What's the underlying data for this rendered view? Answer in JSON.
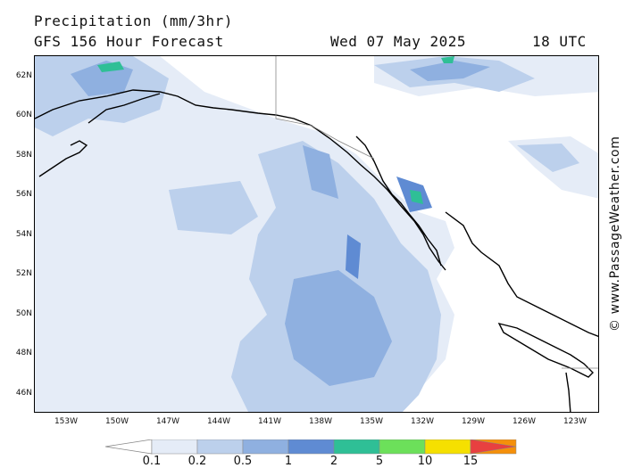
{
  "header": {
    "title": "Precipitation (mm/3hr)",
    "subtitle": "GFS 156 Hour Forecast",
    "valid_date": "Wed 07 May 2025",
    "valid_time": "18 UTC"
  },
  "watermark": "© www.PassageWeather.com",
  "axes": {
    "lat_labels": [
      "62N",
      "60N",
      "58N",
      "56N",
      "54N",
      "52N",
      "50N",
      "48N",
      "46N"
    ],
    "lon_labels": [
      "153W",
      "150W",
      "147W",
      "144W",
      "141W",
      "138W",
      "135W",
      "132W",
      "129W",
      "126W",
      "123W"
    ]
  },
  "legend": {
    "labels": [
      "0.1",
      "0.2",
      "0.5",
      "1",
      "2",
      "5",
      "10",
      "15"
    ],
    "colors": [
      "#e5ecf7",
      "#bcd0ec",
      "#8fb0e0",
      "#5f8bd3",
      "#2fbf96",
      "#6ce05a",
      "#f5e000",
      "#f5900a",
      "#e84040"
    ]
  },
  "palette": {
    "land_outline": "#000000",
    "border": "#888888"
  }
}
